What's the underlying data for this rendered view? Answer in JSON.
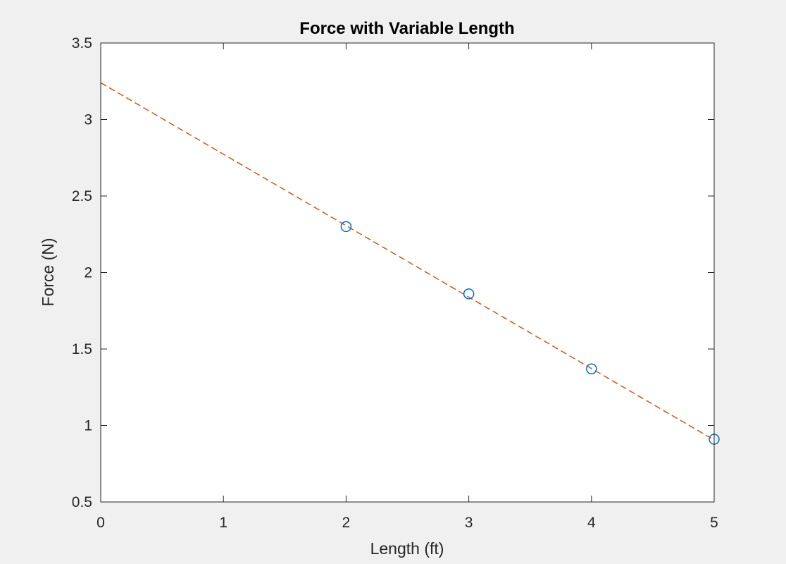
{
  "chart_data": {
    "type": "scatter",
    "title": "Force with Variable Length",
    "xlabel": "Length (ft)",
    "ylabel": "Force (N)",
    "xlim": [
      0,
      5
    ],
    "ylim": [
      0.5,
      3.5
    ],
    "x_ticks": [
      0,
      1,
      2,
      3,
      4,
      5
    ],
    "x_tick_labels": [
      "0",
      "1",
      "2",
      "3",
      "4",
      "5"
    ],
    "y_ticks": [
      0.5,
      1,
      1.5,
      2,
      2.5,
      3,
      3.5
    ],
    "y_tick_labels": [
      "0.5",
      "1",
      "1.5",
      "2",
      "2.5",
      "3",
      "3.5"
    ],
    "grid": false,
    "series": [
      {
        "type": "scatter",
        "marker": "circle",
        "color": "#0072BD",
        "x": [
          2,
          3,
          4,
          5
        ],
        "y": [
          2.3,
          1.86,
          1.37,
          0.91
        ]
      },
      {
        "type": "line",
        "style": "dashed",
        "color": "#D95319",
        "x": [
          0,
          5
        ],
        "y": [
          3.24,
          0.905
        ]
      }
    ]
  }
}
